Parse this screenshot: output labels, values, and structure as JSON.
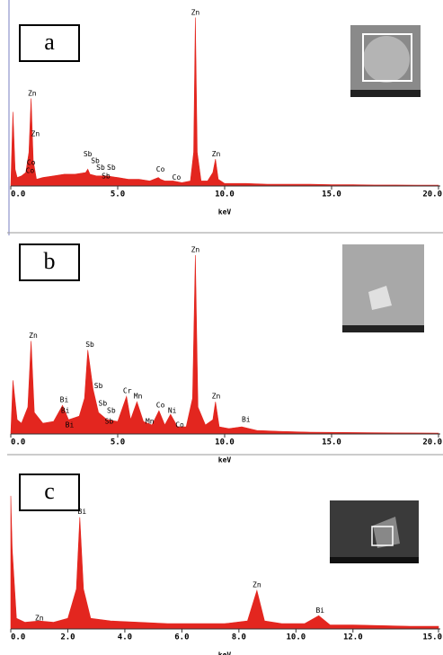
{
  "chart_data": [
    {
      "type": "area",
      "panel_label": "a",
      "x_label": "keV",
      "color": "#e3261f",
      "x": [
        0,
        0.1,
        0.2,
        0.3,
        0.5,
        0.7,
        0.85,
        0.95,
        1.05,
        1.2,
        1.5,
        2.0,
        2.5,
        3.0,
        3.5,
        3.6,
        3.7,
        4.0,
        4.5,
        5.0,
        5.5,
        6.0,
        6.5,
        6.9,
        7.0,
        7.2,
        7.6,
        8.0,
        8.4,
        8.55,
        8.63,
        8.72,
        8.9,
        9.2,
        9.45,
        9.57,
        9.7,
        10.0,
        11,
        12,
        13,
        14,
        15,
        16,
        17,
        18,
        19,
        20
      ],
      "values": [
        0,
        44,
        10,
        5,
        6,
        8,
        20,
        52,
        15,
        4,
        5,
        6,
        7,
        7,
        8,
        10,
        7,
        6,
        6,
        5,
        4,
        4,
        3,
        5,
        4,
        3,
        3,
        2,
        3,
        20,
        100,
        20,
        3,
        3,
        8,
        16,
        4,
        1.5,
        1.5,
        1,
        1,
        1,
        0.8,
        0.8,
        0.6,
        0.6,
        0.5,
        0.5
      ],
      "xlim": [
        0,
        20
      ],
      "ylim": [
        0,
        104
      ],
      "xticks": [
        {
          "value": 0,
          "label": "0.0"
        },
        {
          "value": 5,
          "label": "5.0"
        },
        {
          "value": 10,
          "label": "10.0"
        },
        {
          "value": 15,
          "label": "15.0"
        },
        {
          "value": 20,
          "label": "20.0"
        }
      ],
      "annotations": [
        {
          "text": "Zn",
          "x": 8.63,
          "y": 103
        },
        {
          "text": "Zn",
          "x": 1.0,
          "y": 55
        },
        {
          "text": "Zn",
          "x": 1.15,
          "y": 31
        },
        {
          "text": "Co",
          "x": 0.95,
          "y": 14
        },
        {
          "text": "Co",
          "x": 0.9,
          "y": 9
        },
        {
          "text": "Sb",
          "x": 3.6,
          "y": 19
        },
        {
          "text": "Sb",
          "x": 3.95,
          "y": 15
        },
        {
          "text": "Sb",
          "x": 4.2,
          "y": 11
        },
        {
          "text": "Sb",
          "x": 4.7,
          "y": 11
        },
        {
          "text": "Sb",
          "x": 4.45,
          "y": 6
        },
        {
          "text": "Co",
          "x": 7.0,
          "y": 10
        },
        {
          "text": "Co",
          "x": 7.75,
          "y": 5
        },
        {
          "text": "Zn",
          "x": 9.6,
          "y": 19
        }
      ]
    },
    {
      "type": "area",
      "panel_label": "b",
      "x_label": "keV",
      "color": "#e3261f",
      "x": [
        0,
        0.1,
        0.3,
        0.5,
        0.8,
        0.95,
        1.1,
        1.5,
        2.0,
        2.42,
        2.7,
        3.2,
        3.45,
        3.6,
        3.85,
        4.1,
        4.5,
        5.0,
        5.41,
        5.6,
        5.9,
        6.2,
        6.6,
        6.93,
        7.2,
        7.47,
        7.8,
        8.2,
        8.5,
        8.63,
        8.75,
        9.1,
        9.45,
        9.57,
        9.75,
        10.2,
        10.8,
        11.5,
        12.5,
        14,
        16,
        18,
        20
      ],
      "values": [
        0,
        30,
        8,
        6,
        15,
        52,
        12,
        6,
        7,
        16,
        8,
        10,
        20,
        47,
        25,
        12,
        8,
        7,
        21,
        8,
        18,
        7,
        5,
        13,
        5,
        11,
        4,
        4,
        20,
        100,
        15,
        5,
        8,
        18,
        4,
        3,
        4,
        2,
        1.5,
        1,
        0.8,
        0.6,
        0.5
      ],
      "xlim": [
        0,
        20
      ],
      "ylim": [
        0,
        104
      ],
      "xticks": [
        {
          "value": 0,
          "label": "0.0"
        },
        {
          "value": 5,
          "label": "5.0"
        },
        {
          "value": 10,
          "label": "10.0"
        },
        {
          "value": 15,
          "label": "15.0"
        },
        {
          "value": 20,
          "label": "20.0"
        }
      ],
      "annotations": [
        {
          "text": "Zn",
          "x": 8.63,
          "y": 103
        },
        {
          "text": "Zn",
          "x": 1.05,
          "y": 55
        },
        {
          "text": "Bi",
          "x": 2.5,
          "y": 19
        },
        {
          "text": "Bi",
          "x": 2.55,
          "y": 13
        },
        {
          "text": "Bi",
          "x": 2.75,
          "y": 5
        },
        {
          "text": "Sb",
          "x": 3.7,
          "y": 50
        },
        {
          "text": "Sb",
          "x": 4.1,
          "y": 27
        },
        {
          "text": "Sb",
          "x": 4.3,
          "y": 17
        },
        {
          "text": "Sb",
          "x": 4.7,
          "y": 13
        },
        {
          "text": "Sb",
          "x": 4.6,
          "y": 7
        },
        {
          "text": "Cr",
          "x": 5.45,
          "y": 24
        },
        {
          "text": "Mn",
          "x": 5.95,
          "y": 21
        },
        {
          "text": "Co",
          "x": 7.0,
          "y": 16
        },
        {
          "text": "Ni",
          "x": 7.55,
          "y": 13
        },
        {
          "text": "Mn",
          "x": 6.5,
          "y": 7
        },
        {
          "text": "Co",
          "x": 7.9,
          "y": 5
        },
        {
          "text": "Zn",
          "x": 9.6,
          "y": 21
        },
        {
          "text": "Bi",
          "x": 11.0,
          "y": 8
        }
      ]
    },
    {
      "type": "area",
      "panel_label": "c",
      "x_label": "keV",
      "color": "#e3261f",
      "x": [
        0,
        0.05,
        0.2,
        0.5,
        1.0,
        1.5,
        2.0,
        2.3,
        2.42,
        2.55,
        2.8,
        3.5,
        4.5,
        5.5,
        6.5,
        7.5,
        8.3,
        8.63,
        8.9,
        9.5,
        10.3,
        10.8,
        11.2,
        12,
        13,
        14,
        15
      ],
      "values": [
        100,
        60,
        8,
        5,
        6,
        5,
        8,
        30,
        84,
        30,
        8,
        6,
        5,
        4,
        4,
        4,
        6,
        29,
        6,
        4,
        4,
        10,
        3,
        3,
        2.5,
        2,
        2
      ],
      "xlim": [
        0,
        15
      ],
      "ylim": [
        0,
        104
      ],
      "xticks": [
        {
          "value": 0,
          "label": "0.0"
        },
        {
          "value": 2,
          "label": "2.0"
        },
        {
          "value": 4,
          "label": "4.0"
        },
        {
          "value": 6,
          "label": "6.0"
        },
        {
          "value": 8,
          "label": "8.0"
        },
        {
          "value": 10,
          "label": "10.0"
        },
        {
          "value": 12,
          "label": "12.0"
        },
        {
          "value": 15,
          "label": "15.0"
        }
      ],
      "annotations": [
        {
          "text": "Bi",
          "x": 2.5,
          "y": 88
        },
        {
          "text": "Zn",
          "x": 8.63,
          "y": 33
        },
        {
          "text": "Bi",
          "x": 10.85,
          "y": 14
        },
        {
          "text": "Zn",
          "x": 1.0,
          "y": 8
        }
      ]
    }
  ]
}
